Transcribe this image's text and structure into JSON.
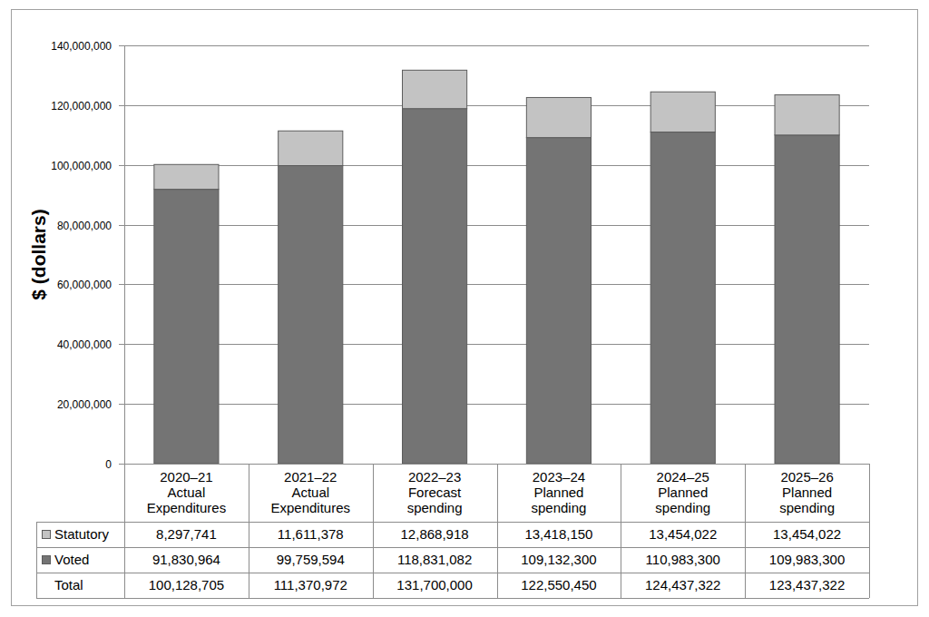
{
  "chart_data": {
    "type": "bar",
    "stacked": true,
    "grid": true,
    "y_label": "$ (dollars)",
    "categories": [
      "2020–21\nActual\nExpenditures",
      "2021–22\nActual\nExpenditures",
      "2022–23\nForecast\nspending",
      "2023–24\nPlanned\nspending",
      "2024–25\nPlanned\nspending",
      "2025–26\nPlanned\nspending"
    ],
    "series": [
      {
        "name": "Statutory",
        "color": "#c3c3c3",
        "values": [
          8297741,
          11611378,
          12868918,
          13418150,
          13454022,
          13454022
        ],
        "value_labels": [
          "8,297,741",
          "11,611,378",
          "12,868,918",
          "13,418,150",
          "13,454,022",
          "13,454,022"
        ]
      },
      {
        "name": "Voted",
        "color": "#747474",
        "values": [
          91830964,
          99759594,
          118831082,
          109132300,
          110983300,
          109983300
        ],
        "value_labels": [
          "91,830,964",
          "99,759,594",
          "118,831,082",
          "109,132,300",
          "110,983,300",
          "109,983,300"
        ]
      }
    ],
    "total": {
      "name": "Total",
      "values": [
        100128705,
        111370972,
        131700000,
        122550450,
        124437322,
        123437322
      ],
      "value_labels": [
        "100,128,705",
        "111,370,972",
        "131,700,000",
        "122,550,450",
        "124,437,322",
        "123,437,322"
      ]
    },
    "ylim": [
      0,
      140000000
    ],
    "yticks": [
      0,
      {
        "value": 20000000,
        "label": "20,000,000"
      },
      {
        "value": 40000000,
        "label": "40,000,000"
      },
      {
        "value": 60000000,
        "label": "60,000,000"
      },
      {
        "value": 80000000,
        "label": "80,000,000"
      },
      {
        "value": 100000000,
        "label": "100,000,000"
      },
      {
        "value": 120000000,
        "label": "120,000,000"
      },
      {
        "value": 140000000,
        "label": "140,000,000"
      }
    ]
  }
}
